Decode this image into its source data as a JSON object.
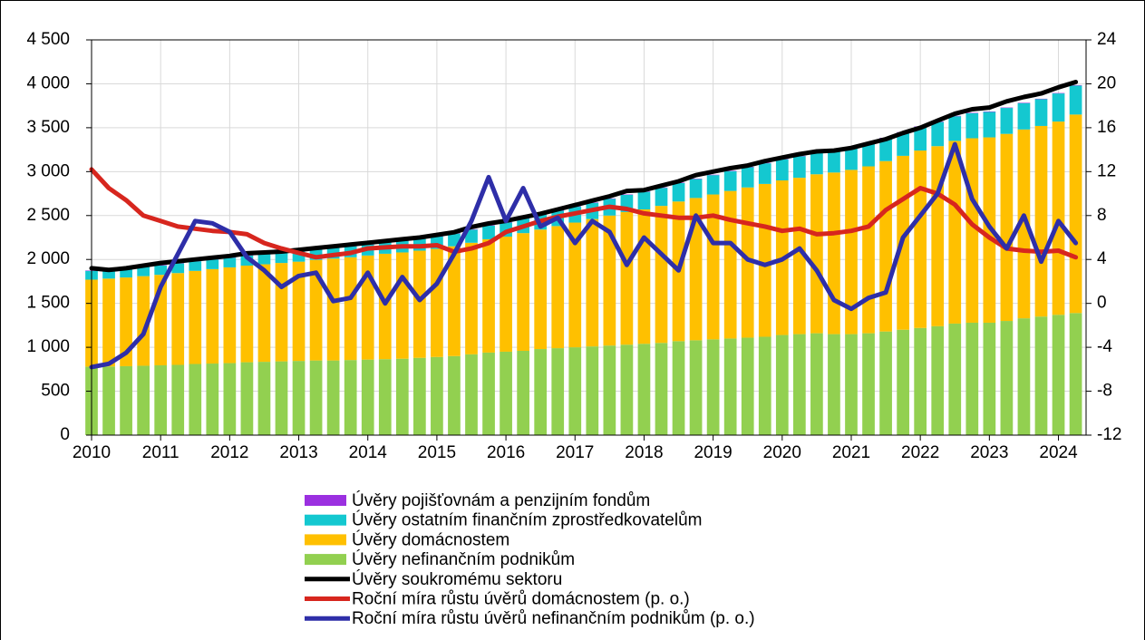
{
  "chart_data": {
    "type": "bar",
    "stacked": true,
    "grid": true,
    "legend": "bottom",
    "x": [
      2010,
      2010.25,
      2010.5,
      2010.75,
      2011,
      2011.25,
      2011.5,
      2011.75,
      2012,
      2012.25,
      2012.5,
      2012.75,
      2013,
      2013.25,
      2013.5,
      2013.75,
      2014,
      2014.25,
      2014.5,
      2014.75,
      2015,
      2015.25,
      2015.5,
      2015.75,
      2016,
      2016.25,
      2016.5,
      2016.75,
      2017,
      2017.25,
      2017.5,
      2017.75,
      2018,
      2018.25,
      2018.5,
      2018.75,
      2019,
      2019.25,
      2019.5,
      2019.75,
      2020,
      2020.25,
      2020.5,
      2020.75,
      2021,
      2021.25,
      2021.5,
      2021.75,
      2022,
      2022.25,
      2022.5,
      2022.75,
      2023,
      2023.25,
      2023.5,
      2023.75,
      2024,
      2024.25
    ],
    "xlim": [
      2010,
      2024.4
    ],
    "xticks": [
      2010,
      2011,
      2012,
      2013,
      2014,
      2015,
      2016,
      2017,
      2018,
      2019,
      2020,
      2021,
      2022,
      2023,
      2024
    ],
    "ylim": [
      0,
      4500
    ],
    "yticks": [
      0,
      500,
      {
        "value": 1000,
        "label": "1 000"
      },
      {
        "value": 1500,
        "label": "1 500"
      },
      {
        "value": 2000,
        "label": "2 000"
      },
      {
        "value": 2500,
        "label": "2 500"
      },
      {
        "value": 3000,
        "label": "3 000"
      },
      {
        "value": 3500,
        "label": "3 500"
      },
      {
        "value": 4000,
        "label": "4 000"
      },
      {
        "value": 4500,
        "label": "4 500"
      }
    ],
    "y2lim": [
      -12,
      24
    ],
    "y2ticks": [
      -12,
      -8,
      -4,
      0,
      4,
      8,
      12,
      16,
      20,
      24
    ],
    "series": [
      {
        "name": "Úvěry pojišťovnám a penzijním fondům",
        "type": "bar",
        "color": "#9b30e0",
        "values": [
          5,
          5,
          5,
          5,
          5,
          5,
          5,
          5,
          5,
          5,
          5,
          5,
          5,
          5,
          5,
          5,
          5,
          5,
          5,
          5,
          5,
          5,
          5,
          5,
          5,
          5,
          5,
          5,
          5,
          5,
          5,
          5,
          5,
          5,
          5,
          5,
          5,
          5,
          5,
          5,
          5,
          5,
          5,
          5,
          5,
          5,
          5,
          5,
          5,
          5,
          5,
          5,
          5,
          5,
          5,
          5,
          5,
          5
        ]
      },
      {
        "name": "Úvěry ostatním finančním zprostředkovatelům",
        "type": "bar",
        "color": "#14c8d0",
        "values": [
          100,
          100,
          100,
          105,
          105,
          110,
          110,
          110,
          110,
          115,
          115,
          120,
          120,
          120,
          125,
          125,
          125,
          130,
          130,
          135,
          140,
          145,
          150,
          155,
          160,
          165,
          170,
          175,
          180,
          185,
          190,
          195,
          200,
          205,
          210,
          215,
          220,
          225,
          230,
          235,
          240,
          245,
          240,
          245,
          250,
          255,
          260,
          265,
          270,
          275,
          280,
          285,
          290,
          295,
          300,
          305,
          320,
          330
        ]
      },
      {
        "name": "Úvěry domácnostem",
        "type": "bar",
        "color": "#ffc000",
        "values": [
          990,
          1000,
          1010,
          1020,
          1030,
          1045,
          1060,
          1075,
          1090,
          1100,
          1110,
          1120,
          1130,
          1145,
          1160,
          1170,
          1185,
          1200,
          1210,
          1220,
          1230,
          1250,
          1270,
          1290,
          1310,
          1340,
          1360,
          1390,
          1420,
          1450,
          1480,
          1510,
          1530,
          1560,
          1590,
          1620,
          1650,
          1680,
          1710,
          1740,
          1760,
          1780,
          1810,
          1840,
          1870,
          1900,
          1940,
          1980,
          2020,
          2050,
          2080,
          2100,
          2110,
          2130,
          2150,
          2170,
          2200,
          2260
        ]
      },
      {
        "name": "Úvěry nefinančním podnikům",
        "type": "bar",
        "color": "#92d050",
        "values": [
          780,
          782,
          785,
          790,
          795,
          800,
          810,
          815,
          820,
          830,
          835,
          840,
          845,
          850,
          850,
          855,
          860,
          865,
          870,
          880,
          890,
          900,
          920,
          940,
          950,
          960,
          980,
          990,
          1000,
          1010,
          1020,
          1030,
          1040,
          1050,
          1070,
          1080,
          1090,
          1100,
          1110,
          1120,
          1140,
          1150,
          1160,
          1150,
          1150,
          1160,
          1180,
          1200,
          1220,
          1240,
          1270,
          1280,
          1280,
          1300,
          1330,
          1350,
          1370,
          1390
        ]
      },
      {
        "name": "Úvěry soukromému sektoru",
        "type": "line",
        "color": "#000000",
        "values": [
          1900,
          1880,
          1900,
          1930,
          1960,
          1980,
          2000,
          2020,
          2040,
          2070,
          2080,
          2090,
          2110,
          2130,
          2150,
          2170,
          2190,
          2210,
          2230,
          2250,
          2280,
          2310,
          2370,
          2410,
          2440,
          2480,
          2520,
          2570,
          2620,
          2670,
          2720,
          2780,
          2790,
          2840,
          2890,
          2960,
          3000,
          3040,
          3070,
          3120,
          3160,
          3200,
          3230,
          3240,
          3270,
          3320,
          3370,
          3440,
          3500,
          3580,
          3660,
          3710,
          3730,
          3800,
          3850,
          3890,
          3960,
          4020
        ]
      },
      {
        "name": "Roční míra růstu úvěrů domácnostem (p. o.)",
        "type": "line",
        "axis": "y2",
        "color": "#d7261e",
        "values": [
          12.2,
          10.5,
          9.4,
          8.0,
          7.5,
          7.0,
          6.8,
          6.6,
          6.5,
          6.3,
          5.5,
          5.0,
          4.6,
          4.2,
          4.4,
          4.6,
          5.0,
          5.1,
          5.2,
          5.2,
          5.3,
          4.7,
          5.0,
          5.5,
          6.5,
          7.0,
          7.5,
          7.9,
          8.2,
          8.5,
          8.8,
          8.6,
          8.2,
          8.0,
          7.8,
          7.8,
          8.0,
          7.6,
          7.3,
          7.0,
          6.6,
          6.8,
          6.3,
          6.4,
          6.6,
          7.0,
          8.5,
          9.5,
          10.5,
          10.0,
          9.0,
          7.2,
          6.0,
          5.0,
          4.8,
          4.7,
          4.8,
          4.2
        ]
      },
      {
        "name": "Roční míra růstu úvěrů nefinančním podnikům (p. o.)",
        "type": "line",
        "axis": "y2",
        "color": "#2e2ea8",
        "values": [
          -5.8,
          -5.5,
          -4.5,
          -2.8,
          1.5,
          4.5,
          7.5,
          7.3,
          6.5,
          4.2,
          3.0,
          1.5,
          2.5,
          2.8,
          0.2,
          0.5,
          2.8,
          0.0,
          2.4,
          0.3,
          1.8,
          4.5,
          7.5,
          11.5,
          7.5,
          10.5,
          7.0,
          7.8,
          5.5,
          7.5,
          6.5,
          3.5,
          6.0,
          4.5,
          3.0,
          8.0,
          5.5,
          5.5,
          4.0,
          3.5,
          4.0,
          5.0,
          3.0,
          0.3,
          -0.5,
          0.5,
          1.0,
          6.0,
          8.0,
          10.0,
          14.5,
          9.5,
          7.0,
          5.0,
          8.0,
          3.8,
          7.5,
          5.5
        ]
      }
    ]
  }
}
